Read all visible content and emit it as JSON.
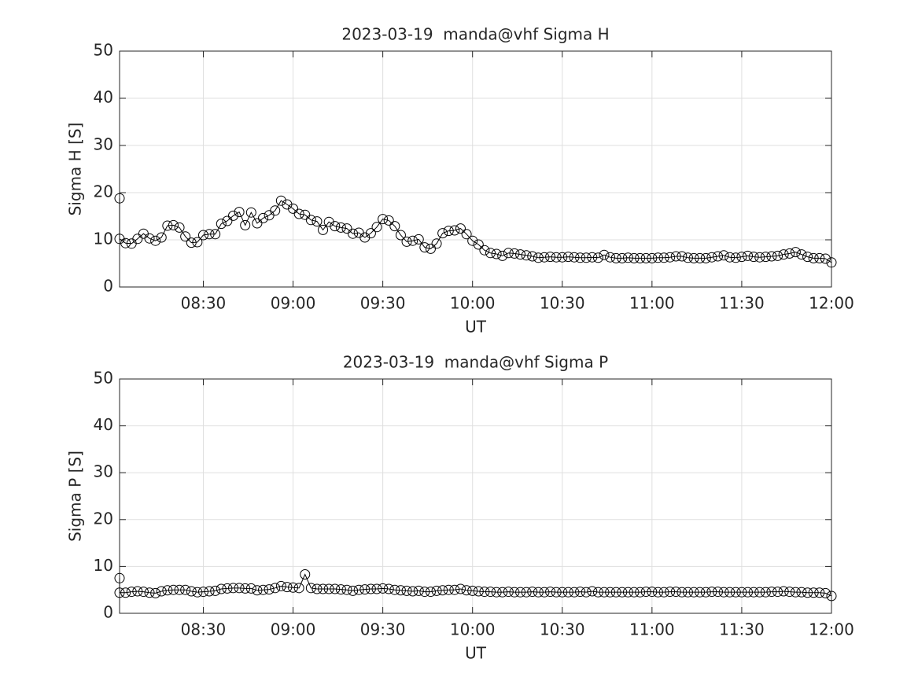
{
  "chart_data": [
    {
      "type": "line",
      "title": "2023-03-19  manda@vhf Sigma H",
      "xlabel": "UT",
      "ylabel": "Sigma H [S]",
      "x": [
        "08:02",
        "08:02",
        "08:04",
        "08:06",
        "08:08",
        "08:10",
        "08:12",
        "08:14",
        "08:16",
        "08:18",
        "08:20",
        "08:22",
        "08:24",
        "08:26",
        "08:28",
        "08:30",
        "08:32",
        "08:34",
        "08:36",
        "08:38",
        "08:40",
        "08:42",
        "08:44",
        "08:46",
        "08:48",
        "08:50",
        "08:52",
        "08:54",
        "08:56",
        "08:58",
        "09:00",
        "09:02",
        "09:04",
        "09:06",
        "09:08",
        "09:10",
        "09:12",
        "09:14",
        "09:16",
        "09:18",
        "09:20",
        "09:22",
        "09:24",
        "09:26",
        "09:28",
        "09:30",
        "09:32",
        "09:34",
        "09:36",
        "09:38",
        "09:40",
        "09:42",
        "09:44",
        "09:46",
        "09:48",
        "09:50",
        "09:52",
        "09:54",
        "09:56",
        "09:58",
        "10:00",
        "10:02",
        "10:04",
        "10:06",
        "10:08",
        "10:10",
        "10:12",
        "10:14",
        "10:16",
        "10:18",
        "10:20",
        "10:22",
        "10:24",
        "10:26",
        "10:28",
        "10:30",
        "10:32",
        "10:34",
        "10:36",
        "10:38",
        "10:40",
        "10:42",
        "10:44",
        "10:46",
        "10:48",
        "10:50",
        "10:52",
        "10:54",
        "10:56",
        "10:58",
        "11:00",
        "11:02",
        "11:04",
        "11:06",
        "11:08",
        "11:10",
        "11:12",
        "11:14",
        "11:16",
        "11:18",
        "11:20",
        "11:22",
        "11:24",
        "11:26",
        "11:28",
        "11:30",
        "11:32",
        "11:34",
        "11:36",
        "11:38",
        "11:40",
        "11:42",
        "11:44",
        "11:46",
        "11:48",
        "11:50",
        "11:52",
        "11:54",
        "11:56",
        "11:58",
        "12:00"
      ],
      "series": [
        {
          "color": "#000000",
          "marker": "circle",
          "values": [
            18.8,
            10.2,
            9.3,
            9.2,
            10.2,
            11.3,
            10.3,
            9.8,
            10.5,
            13.0,
            13.1,
            12.6,
            10.7,
            9.4,
            9.5,
            11.0,
            11.2,
            11.2,
            13.4,
            14.0,
            15.1,
            15.9,
            13.1,
            15.8,
            13.5,
            14.6,
            15.2,
            16.2,
            18.3,
            17.5,
            16.6,
            15.5,
            15.3,
            14.2,
            13.9,
            12.1,
            13.8,
            12.9,
            12.6,
            12.4,
            11.3,
            11.5,
            10.5,
            11.4,
            12.7,
            14.4,
            14.1,
            12.9,
            11.0,
            9.6,
            9.8,
            10.1,
            8.4,
            8.1,
            9.2,
            11.4,
            11.9,
            12.0,
            12.4,
            11.2,
            9.8,
            9.0,
            7.8,
            7.2,
            7.0,
            6.6,
            7.2,
            7.1,
            6.9,
            6.7,
            6.5,
            6.2,
            6.3,
            6.4,
            6.3,
            6.3,
            6.4,
            6.3,
            6.2,
            6.2,
            6.3,
            6.2,
            6.8,
            6.3,
            6.1,
            6.1,
            6.2,
            6.1,
            6.1,
            6.1,
            6.1,
            6.2,
            6.2,
            6.3,
            6.5,
            6.5,
            6.2,
            6.1,
            6.1,
            6.1,
            6.3,
            6.5,
            6.7,
            6.3,
            6.2,
            6.4,
            6.6,
            6.4,
            6.3,
            6.4,
            6.5,
            6.6,
            6.9,
            7.1,
            7.4,
            6.9,
            6.4,
            6.1,
            6.1,
            6.0,
            5.2
          ]
        }
      ],
      "xlim": [
        "08:02",
        "12:00"
      ],
      "xticks": [
        "08:30",
        "09:00",
        "09:30",
        "10:00",
        "10:30",
        "11:00",
        "11:30",
        "12:00"
      ],
      "ylim": [
        0,
        50
      ],
      "yticks": [
        0,
        10,
        20,
        30,
        40,
        50
      ],
      "grid": true
    },
    {
      "type": "line",
      "title": "2023-03-19  manda@vhf Sigma P",
      "xlabel": "UT",
      "ylabel": "Sigma P [S]",
      "x": [
        "08:02",
        "08:02",
        "08:04",
        "08:06",
        "08:08",
        "08:10",
        "08:12",
        "08:14",
        "08:16",
        "08:18",
        "08:20",
        "08:22",
        "08:24",
        "08:26",
        "08:28",
        "08:30",
        "08:32",
        "08:34",
        "08:36",
        "08:38",
        "08:40",
        "08:42",
        "08:44",
        "08:46",
        "08:48",
        "08:50",
        "08:52",
        "08:54",
        "08:56",
        "08:58",
        "09:00",
        "09:02",
        "09:04",
        "09:06",
        "09:08",
        "09:10",
        "09:12",
        "09:14",
        "09:16",
        "09:18",
        "09:20",
        "09:22",
        "09:24",
        "09:26",
        "09:28",
        "09:30",
        "09:32",
        "09:34",
        "09:36",
        "09:38",
        "09:40",
        "09:42",
        "09:44",
        "09:46",
        "09:48",
        "09:50",
        "09:52",
        "09:54",
        "09:56",
        "09:58",
        "10:00",
        "10:02",
        "10:04",
        "10:06",
        "10:08",
        "10:10",
        "10:12",
        "10:14",
        "10:16",
        "10:18",
        "10:20",
        "10:22",
        "10:24",
        "10:26",
        "10:28",
        "10:30",
        "10:32",
        "10:34",
        "10:36",
        "10:38",
        "10:40",
        "10:42",
        "10:44",
        "10:46",
        "10:48",
        "10:50",
        "10:52",
        "10:54",
        "10:56",
        "10:58",
        "11:00",
        "11:02",
        "11:04",
        "11:06",
        "11:08",
        "11:10",
        "11:12",
        "11:14",
        "11:16",
        "11:18",
        "11:20",
        "11:22",
        "11:24",
        "11:26",
        "11:28",
        "11:30",
        "11:32",
        "11:34",
        "11:36",
        "11:38",
        "11:40",
        "11:42",
        "11:44",
        "11:46",
        "11:48",
        "11:50",
        "11:52",
        "11:54",
        "11:56",
        "11:58",
        "12:00"
      ],
      "series": [
        {
          "color": "#000000",
          "marker": "circle",
          "values": [
            7.5,
            4.4,
            4.4,
            4.6,
            4.7,
            4.6,
            4.4,
            4.3,
            4.7,
            4.9,
            5.0,
            5.0,
            5.0,
            4.7,
            4.5,
            4.6,
            4.7,
            4.8,
            5.2,
            5.3,
            5.4,
            5.4,
            5.3,
            5.3,
            4.9,
            5.0,
            5.1,
            5.4,
            5.8,
            5.6,
            5.5,
            5.4,
            8.3,
            5.4,
            5.2,
            5.2,
            5.2,
            5.2,
            5.1,
            5.0,
            4.8,
            5.0,
            5.1,
            5.2,
            5.2,
            5.3,
            5.2,
            5.0,
            4.9,
            4.8,
            4.7,
            4.8,
            4.6,
            4.6,
            4.8,
            4.9,
            5.0,
            5.0,
            5.2,
            4.9,
            4.8,
            4.7,
            4.6,
            4.6,
            4.5,
            4.5,
            4.6,
            4.5,
            4.5,
            4.5,
            4.6,
            4.5,
            4.5,
            4.6,
            4.5,
            4.5,
            4.5,
            4.5,
            4.6,
            4.5,
            4.7,
            4.5,
            4.5,
            4.5,
            4.5,
            4.5,
            4.5,
            4.5,
            4.5,
            4.6,
            4.6,
            4.5,
            4.5,
            4.6,
            4.6,
            4.5,
            4.5,
            4.5,
            4.5,
            4.5,
            4.6,
            4.6,
            4.5,
            4.5,
            4.5,
            4.5,
            4.5,
            4.5,
            4.5,
            4.5,
            4.6,
            4.6,
            4.7,
            4.6,
            4.5,
            4.5,
            4.4,
            4.4,
            4.4,
            4.3,
            3.7
          ]
        }
      ],
      "xlim": [
        "08:02",
        "12:00"
      ],
      "xticks": [
        "08:30",
        "09:00",
        "09:30",
        "10:00",
        "10:30",
        "11:00",
        "11:30",
        "12:00"
      ],
      "ylim": [
        0,
        50
      ],
      "yticks": [
        0,
        10,
        20,
        30,
        40,
        50
      ],
      "grid": true
    }
  ]
}
